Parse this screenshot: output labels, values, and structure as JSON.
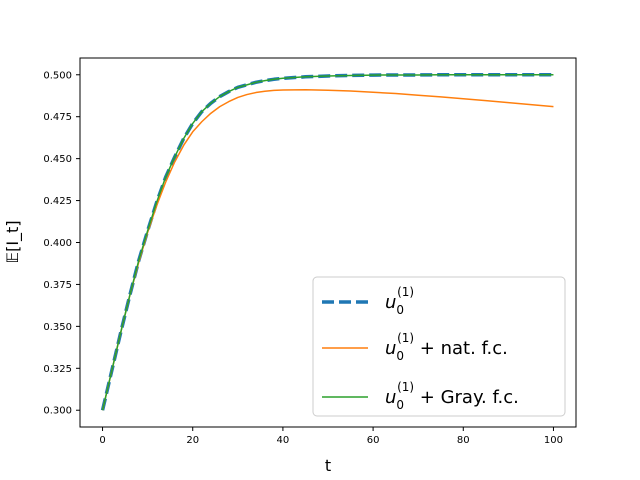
{
  "chart_data": {
    "type": "line",
    "xlabel": "t",
    "ylabel": "𝔼[I_t]",
    "xlim": [
      -5,
      105
    ],
    "ylim": [
      0.29,
      0.51
    ],
    "xticks": [
      0,
      20,
      40,
      60,
      80,
      100
    ],
    "yticks": [
      0.3,
      0.325,
      0.35,
      0.375,
      0.4,
      0.425,
      0.45,
      0.475,
      0.5
    ],
    "xtick_labels": [
      "0",
      "20",
      "40",
      "60",
      "80",
      "100"
    ],
    "ytick_labels": [
      "0.300",
      "0.325",
      "0.350",
      "0.375",
      "0.400",
      "0.425",
      "0.450",
      "0.475",
      "0.500"
    ],
    "grid": false,
    "legend_position": "lower-right",
    "series": [
      {
        "name": "u0(1)",
        "legend_base": "u",
        "legend_sub": "0",
        "legend_sup": "(1)",
        "legend_suffix": "",
        "color": "#1f77b4",
        "style": "dashed-thick",
        "x": [
          0,
          2,
          4,
          6,
          8,
          10,
          12,
          14,
          16,
          18,
          20,
          22,
          24,
          26,
          28,
          30,
          32,
          34,
          36,
          38,
          40,
          45,
          50,
          55,
          60,
          65,
          70,
          75,
          80,
          85,
          90,
          95,
          100
        ],
        "y": [
          0.3,
          0.323,
          0.346,
          0.368,
          0.389,
          0.407,
          0.424,
          0.439,
          0.451,
          0.462,
          0.471,
          0.478,
          0.483,
          0.487,
          0.49,
          0.4925,
          0.494,
          0.4955,
          0.4965,
          0.4973,
          0.4979,
          0.4988,
          0.4993,
          0.4996,
          0.4998,
          0.4999,
          0.4999,
          0.5,
          0.5,
          0.5,
          0.5,
          0.5,
          0.5
        ]
      },
      {
        "name": "u0(1) + nat. f.c.",
        "legend_base": "u",
        "legend_sub": "0",
        "legend_sup": "(1)",
        "legend_suffix": " + nat. f.c.",
        "color": "#ff7f0e",
        "style": "solid",
        "x": [
          0,
          2,
          4,
          6,
          8,
          10,
          12,
          14,
          16,
          18,
          20,
          22,
          24,
          26,
          28,
          30,
          32,
          34,
          36,
          38,
          40,
          45,
          50,
          55,
          60,
          65,
          70,
          75,
          80,
          85,
          90,
          95,
          100
        ],
        "y": [
          0.3,
          0.323,
          0.346,
          0.368,
          0.388,
          0.406,
          0.422,
          0.436,
          0.448,
          0.458,
          0.466,
          0.472,
          0.477,
          0.481,
          0.484,
          0.4865,
          0.4882,
          0.4894,
          0.4902,
          0.4907,
          0.4909,
          0.4911,
          0.4908,
          0.4903,
          0.4896,
          0.4888,
          0.4878,
          0.4868,
          0.4857,
          0.4846,
          0.4834,
          0.4822,
          0.481
        ]
      },
      {
        "name": "u0(1) + Gray. f.c.",
        "legend_base": "u",
        "legend_sub": "0",
        "legend_sup": "(1)",
        "legend_suffix": " + Gray. f.c.",
        "color": "#2ca02c",
        "style": "solid",
        "x": [
          0,
          2,
          4,
          6,
          8,
          10,
          12,
          14,
          16,
          18,
          20,
          22,
          24,
          26,
          28,
          30,
          32,
          34,
          36,
          38,
          40,
          45,
          50,
          55,
          60,
          65,
          70,
          75,
          80,
          85,
          90,
          95,
          100
        ],
        "y": [
          0.3,
          0.323,
          0.346,
          0.368,
          0.389,
          0.407,
          0.424,
          0.439,
          0.451,
          0.462,
          0.471,
          0.478,
          0.483,
          0.487,
          0.49,
          0.4925,
          0.494,
          0.4955,
          0.4965,
          0.4973,
          0.4979,
          0.4988,
          0.4993,
          0.4996,
          0.4998,
          0.4999,
          0.4999,
          0.5,
          0.5,
          0.5,
          0.5,
          0.5,
          0.5
        ]
      }
    ]
  }
}
